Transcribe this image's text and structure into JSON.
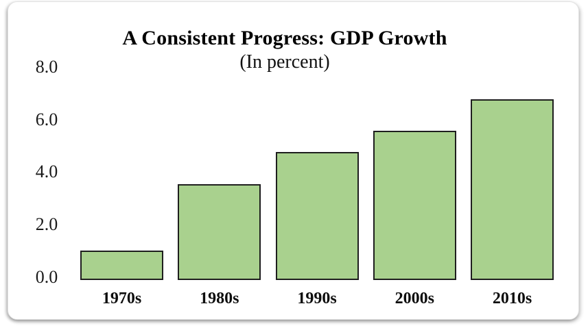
{
  "chart_data": {
    "type": "bar",
    "title": "A Consistent Progress: GDP Growth",
    "subtitle": "(In percent)",
    "categories": [
      "1970s",
      "1980s",
      "1990s",
      "2000s",
      "2010s"
    ],
    "values": [
      1.1,
      3.6,
      4.8,
      5.6,
      6.8
    ],
    "xlabel": "",
    "ylabel": "",
    "ylim": [
      0,
      8
    ],
    "yticks": [
      0,
      2,
      4,
      6,
      8
    ],
    "ytick_labels": [
      "0.0",
      "2.0",
      "4.0",
      "6.0",
      "8.0"
    ],
    "grid": false,
    "legend_position": "none",
    "bar_fill_color": "#a9d18e",
    "bar_border_color": "#1e1e1e",
    "text_color": "#000000",
    "background_color": "#ffffff"
  }
}
